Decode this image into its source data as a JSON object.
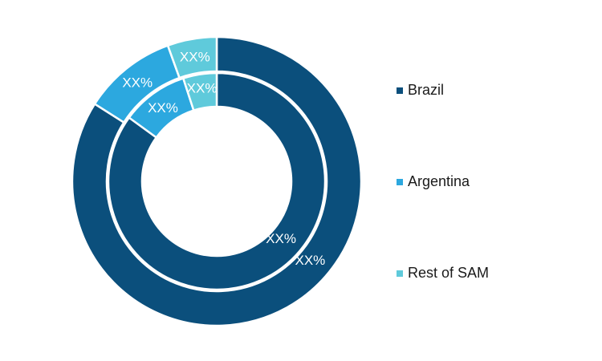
{
  "chart_data": {
    "type": "pie",
    "style": "nested-donut",
    "categories": [
      "Brazil",
      "Argentina",
      "Rest of SAM"
    ],
    "colors": [
      "#0b4f7c",
      "#2ca8df",
      "#5fcadb"
    ],
    "series": [
      {
        "ring": "outer",
        "values": [
          84,
          10.5,
          5.5
        ],
        "labels": [
          "XX%",
          "XX%",
          "XX%"
        ]
      },
      {
        "ring": "inner",
        "values": [
          85,
          10,
          5
        ],
        "labels": [
          "XX%",
          "XX%",
          "XX%"
        ]
      }
    ],
    "legend_position": "right",
    "title": ""
  },
  "legend": {
    "items": [
      {
        "label": "Brazil",
        "color": "#0b4f7c"
      },
      {
        "label": "Argentina",
        "color": "#2ca8df"
      },
      {
        "label": "Rest of SAM",
        "color": "#5fcadb"
      }
    ]
  }
}
